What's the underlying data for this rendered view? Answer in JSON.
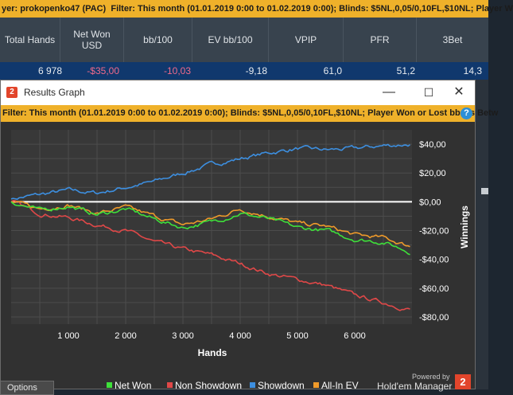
{
  "stats_window": {
    "filter_prefix": "yer: prokopenko47 (PAC)",
    "filter_label": "Filter:",
    "filter_text": "This month (01.01.2019 0:00 to 01.02.2019 0:00); Blinds: $5NL,0,05/0,10FL,$10NL; Player W",
    "columns": [
      "Total Hands",
      "Net Won USD",
      "bb/100",
      "EV bb/100",
      "VPIP",
      "PFR",
      "3Bet"
    ],
    "values": [
      "6 978",
      "-$35,00",
      "-10,03",
      "-9,18",
      "61,0",
      "51,2",
      "14,3"
    ]
  },
  "graph_window": {
    "title": "Results Graph",
    "filter_label": "Filter:",
    "filter_text": "This month (01.01.2019 0:00 to 01.02.2019 0:00); Blinds: $5NL,0,05/0,10FL,$10NL; Player Won or Lost bbs is Betw",
    "help_icon": "question-mark",
    "options_label": "Options",
    "powered_by": "Powered by",
    "brand": "Hold'em Manager",
    "brand_logo": "2"
  },
  "chart_data": {
    "type": "line",
    "xlabel": "Hands",
    "ylabel": "Winnings",
    "xlim": [
      0,
      7000
    ],
    "ylim": [
      -85,
      50
    ],
    "x_ticks": [
      1000,
      2000,
      3000,
      4000,
      5000,
      6000
    ],
    "x_tick_labels": [
      "1 000",
      "2 000",
      "3 000",
      "4 000",
      "5 000",
      "6 000"
    ],
    "y_ticks": [
      40,
      20,
      0,
      -20,
      -40,
      -60,
      -80
    ],
    "y_tick_labels": [
      "$40,00",
      "$20,00",
      "$0,00",
      "-$20,00",
      "-$40,00",
      "-$60,00",
      "-$80,00"
    ],
    "grid": true,
    "legend_position": "bottom",
    "x": [
      0,
      500,
      1000,
      1500,
      2000,
      2500,
      3000,
      3500,
      4000,
      4500,
      5000,
      5500,
      6000,
      6500,
      6978
    ],
    "series": [
      {
        "name": "Net Won",
        "color": "#3ee03a",
        "values": [
          0,
          -6,
          -3,
          -9,
          -5,
          -12,
          -18,
          -14,
          -8,
          -12,
          -18,
          -20,
          -26,
          -28,
          -35
        ]
      },
      {
        "name": "Non Showdown",
        "color": "#e04848",
        "values": [
          0,
          -8,
          -11,
          -16,
          -20,
          -28,
          -33,
          -37,
          -43,
          -50,
          -54,
          -58,
          -65,
          -70,
          -75
        ]
      },
      {
        "name": "Showdown",
        "color": "#3d8fe0",
        "values": [
          2,
          5,
          8,
          6,
          10,
          14,
          20,
          26,
          30,
          34,
          37,
          36,
          37,
          39,
          40
        ]
      },
      {
        "name": "All-In EV",
        "color": "#ef9a2a",
        "values": [
          0,
          -5,
          -2,
          -8,
          -4,
          -10,
          -16,
          -12,
          -5,
          -10,
          -15,
          -17,
          -23,
          -25,
          -31
        ]
      }
    ]
  }
}
